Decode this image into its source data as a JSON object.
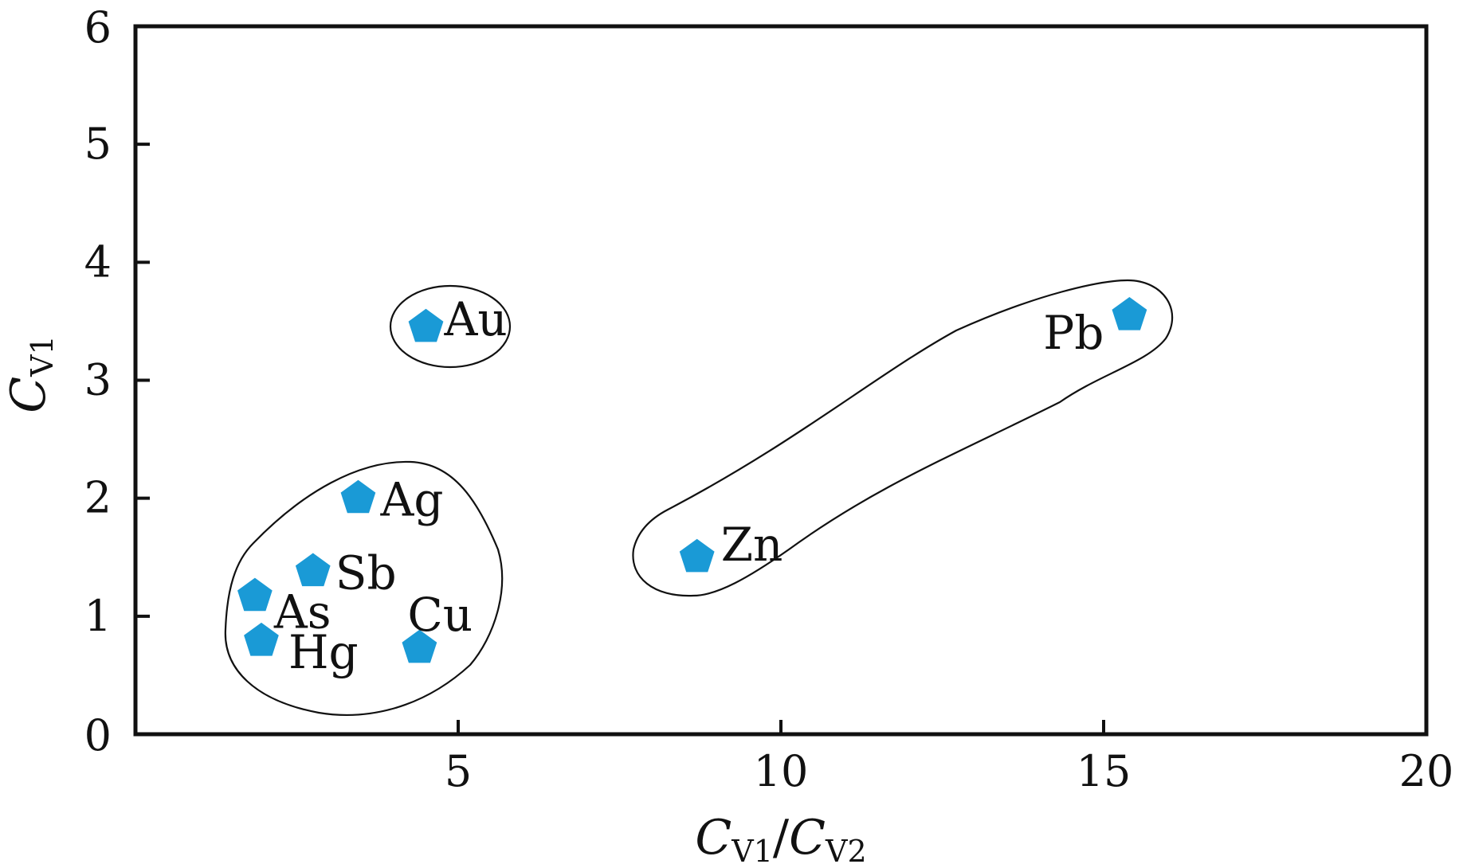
{
  "chart_data": {
    "type": "scatter",
    "title": "",
    "xlabel": {
      "main": "C",
      "sub1": "V1",
      "sep": "/",
      "main2": "C",
      "sub2": "V2"
    },
    "ylabel": {
      "main": "C",
      "sub": "V1"
    },
    "xlim": [
      0,
      20
    ],
    "ylim": [
      0,
      6
    ],
    "x_ticks": [
      {
        "value": 5,
        "label": "5"
      },
      {
        "value": 10,
        "label": "10"
      },
      {
        "value": 15,
        "label": "15"
      },
      {
        "value": 20,
        "label": "20"
      }
    ],
    "y_ticks": [
      {
        "value": 0,
        "label": "0"
      },
      {
        "value": 1,
        "label": "1"
      },
      {
        "value": 2,
        "label": "2"
      },
      {
        "value": 3,
        "label": "3"
      },
      {
        "value": 4,
        "label": "4"
      },
      {
        "value": 5,
        "label": "5"
      },
      {
        "value": 6,
        "label": "6"
      }
    ],
    "grid": false,
    "marker_color": "#1a9ad6",
    "marker_shape": "pentagon",
    "points": [
      {
        "label": "Au",
        "x": 4.5,
        "y": 3.45
      },
      {
        "label": "Ag",
        "x": 3.45,
        "y": 2.0
      },
      {
        "label": "Sb",
        "x": 2.75,
        "y": 1.38
      },
      {
        "label": "As",
        "x": 1.85,
        "y": 1.17
      },
      {
        "label": "Hg",
        "x": 1.95,
        "y": 0.79
      },
      {
        "label": "Cu",
        "x": 4.4,
        "y": 0.73
      },
      {
        "label": "Zn",
        "x": 8.7,
        "y": 1.5
      },
      {
        "label": "Pb",
        "x": 15.4,
        "y": 3.55
      }
    ]
  }
}
